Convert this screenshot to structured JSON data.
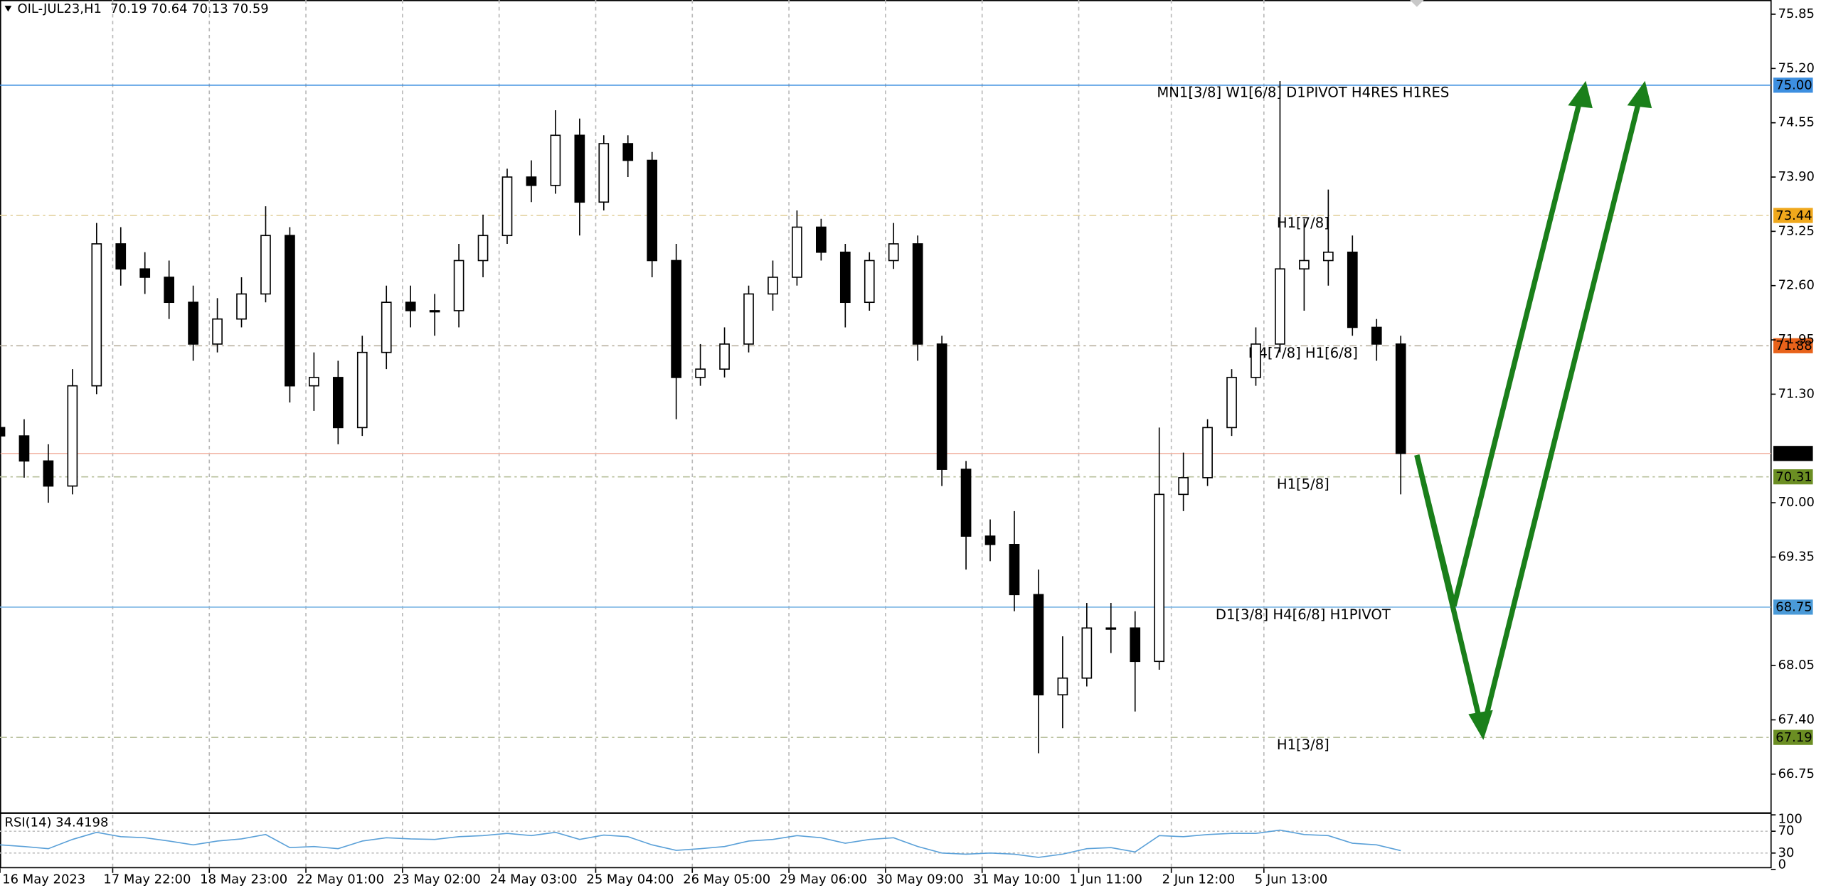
{
  "chart_data": {
    "type": "candlestick",
    "symbol": "OIL-JUL23,H1",
    "ohlc": [
      70.19,
      70.64,
      70.13,
      70.59
    ],
    "xlim": [
      0,
      440
    ],
    "ylim": [
      66.29,
      76.02
    ],
    "x": [
      0,
      6,
      12,
      18,
      24,
      30,
      36,
      42,
      48,
      54,
      60,
      66,
      72,
      78,
      84,
      90,
      96,
      102,
      108,
      114,
      120,
      126,
      132,
      138,
      144,
      150,
      156,
      162,
      168,
      174,
      180,
      186,
      192,
      198,
      204,
      210,
      216,
      222,
      228,
      234,
      240,
      246,
      252,
      258,
      264,
      270,
      276,
      282,
      288,
      294,
      300,
      306,
      312,
      318,
      324,
      330,
      336,
      342,
      348
    ],
    "open": [
      70.9,
      70.8,
      70.5,
      70.2,
      71.4,
      73.1,
      72.8,
      72.7,
      72.4,
      71.9,
      72.2,
      72.5,
      73.2,
      71.4,
      71.5,
      70.9,
      71.8,
      72.4,
      72.3,
      72.3,
      72.9,
      73.2,
      73.9,
      73.8,
      74.4,
      73.6,
      74.3,
      74.1,
      72.9,
      71.5,
      71.6,
      71.9,
      72.5,
      72.7,
      73.3,
      73.0,
      72.4,
      72.9,
      73.1,
      71.9,
      70.4,
      69.6,
      69.5,
      68.9,
      67.7,
      67.9,
      68.5,
      68.5,
      68.1,
      70.1,
      70.3,
      70.9,
      71.5,
      71.9,
      72.8,
      72.9,
      73.0,
      72.1,
      71.9
    ],
    "high": [
      71.15,
      71.0,
      70.7,
      71.6,
      73.35,
      73.3,
      73.0,
      72.9,
      72.6,
      72.45,
      72.7,
      73.55,
      73.3,
      71.8,
      71.7,
      72.0,
      72.6,
      72.6,
      72.5,
      73.1,
      73.45,
      74.0,
      74.1,
      74.7,
      74.6,
      74.4,
      74.4,
      74.2,
      73.1,
      71.9,
      72.1,
      72.6,
      72.9,
      73.5,
      73.4,
      73.1,
      73.0,
      73.35,
      73.2,
      72.0,
      70.5,
      69.8,
      69.9,
      69.2,
      68.4,
      68.8,
      68.8,
      68.7,
      70.9,
      70.6,
      71.0,
      71.6,
      72.1,
      75.05,
      73.4,
      73.75,
      73.2,
      72.2,
      72.0
    ],
    "low": [
      70.5,
      70.3,
      70.0,
      70.1,
      71.3,
      72.6,
      72.5,
      72.2,
      71.7,
      71.8,
      72.1,
      72.4,
      71.2,
      71.1,
      70.7,
      70.8,
      71.6,
      72.1,
      72.0,
      72.1,
      72.7,
      73.1,
      73.6,
      73.7,
      73.2,
      73.5,
      73.9,
      72.7,
      71.0,
      71.4,
      71.5,
      71.8,
      72.3,
      72.6,
      72.9,
      72.1,
      72.3,
      72.8,
      71.7,
      70.2,
      69.2,
      69.3,
      68.7,
      67.0,
      67.3,
      67.8,
      68.2,
      67.5,
      68.0,
      69.9,
      70.2,
      70.8,
      71.4,
      71.8,
      72.3,
      72.6,
      72.0,
      71.7,
      70.1
    ],
    "close": [
      70.8,
      70.5,
      70.2,
      71.4,
      73.1,
      72.8,
      72.7,
      72.4,
      71.9,
      72.2,
      72.5,
      73.2,
      71.4,
      71.5,
      70.9,
      71.8,
      72.4,
      72.3,
      72.3,
      72.9,
      73.2,
      73.9,
      73.8,
      74.4,
      73.6,
      74.3,
      74.1,
      72.9,
      71.5,
      71.6,
      71.9,
      72.5,
      72.7,
      73.3,
      73.0,
      72.4,
      72.9,
      73.1,
      71.9,
      70.4,
      69.6,
      69.5,
      68.9,
      67.7,
      67.9,
      68.5,
      68.5,
      68.1,
      70.1,
      70.3,
      70.9,
      71.5,
      71.9,
      72.8,
      72.9,
      73.0,
      72.1,
      71.9,
      70.59
    ],
    "up_color": "#ffffff",
    "down_color": "#000000",
    "yticks": [
      75.85,
      {
        "value": 75.2,
        "label": "75.20"
      },
      74.55,
      {
        "value": 73.9,
        "label": "73.90"
      },
      73.25,
      {
        "value": 72.6,
        "label": "72.60"
      },
      71.95,
      {
        "value": 71.3,
        "label": "71.30"
      },
      {
        "value": 70,
        "label": "70.00"
      },
      69.35,
      68.05,
      {
        "value": 67.4,
        "label": "67.40"
      },
      66.75
    ],
    "xticks": [
      {
        "value": 0,
        "label": "16 May 2023"
      },
      {
        "value": 28,
        "label": "17 May 22:00"
      },
      {
        "value": 52,
        "label": "18 May 23:00"
      },
      {
        "value": 76,
        "label": "22 May 01:00"
      },
      {
        "value": 100,
        "label": "23 May 02:00"
      },
      {
        "value": 124,
        "label": "24 May 03:00"
      },
      {
        "value": 148,
        "label": "25 May 04:00"
      },
      {
        "value": 172,
        "label": "26 May 05:00"
      },
      {
        "value": 196,
        "label": "29 May 06:00"
      },
      {
        "value": 220,
        "label": "30 May 09:00"
      },
      {
        "value": 244,
        "label": "31 May 10:00"
      },
      {
        "value": 268,
        "label": "1 Jun 11:00"
      },
      {
        "value": 291,
        "label": "2 Jun 12:00"
      },
      {
        "value": 314,
        "label": "5 Jun 13:00"
      }
    ],
    "grid": true,
    "levels": [
      {
        "value": 75,
        "value_label": "75.00",
        "label": "MN1[3/8] W1[6/8] D1PIVOT H4RES H1RES",
        "color": "#3d8fe0",
        "line_color": "#3d8fe0",
        "style": "solid"
      },
      {
        "value": 73.44,
        "label": "H1[7/8]",
        "color": "#f0a81c",
        "line_color": "#e3d3a0",
        "style": "dashdot"
      },
      {
        "value": 71.88,
        "label": "H4[7/8] H1[6/8]",
        "color": "#e8621a",
        "line_color": "#b8b0a0",
        "style": "dashdot"
      },
      {
        "value": 70.59,
        "color": "#000000",
        "line_color": "#f2b8a8",
        "style": "solid"
      },
      {
        "value": 70.31,
        "label": "H1[5/8]",
        "color": "#6b8e23",
        "line_color": "#b8c09c",
        "style": "dashdot"
      },
      {
        "value": 68.75,
        "label": "D1[3/8] H4[6/8] H1PIVOT",
        "color": "#4a9ad8",
        "line_color": "#7ab4e4",
        "style": "solid"
      },
      {
        "value": 67.19,
        "label": "H1[3/8]",
        "color": "#6b8e23",
        "line_color": "#b8c09c",
        "style": "dashdot"
      }
    ],
    "indicator": {
      "type": "line",
      "name": "RSI(14)",
      "value": 34.4198,
      "color": "#5aa0d8",
      "ylim": [
        0,
        100
      ],
      "yticks": [
        100,
        70,
        30,
        0
      ],
      "levels": [
        70,
        30
      ],
      "values": [
        45,
        42,
        38,
        55,
        68,
        60,
        58,
        52,
        45,
        52,
        56,
        64,
        40,
        42,
        38,
        52,
        58,
        56,
        55,
        60,
        62,
        66,
        62,
        68,
        55,
        63,
        60,
        45,
        35,
        38,
        42,
        52,
        55,
        62,
        58,
        48,
        55,
        58,
        42,
        30,
        28,
        30,
        28,
        22,
        28,
        38,
        40,
        32,
        62,
        60,
        64,
        66,
        66,
        72,
        64,
        62,
        48,
        45,
        34.4198
      ]
    }
  }
}
